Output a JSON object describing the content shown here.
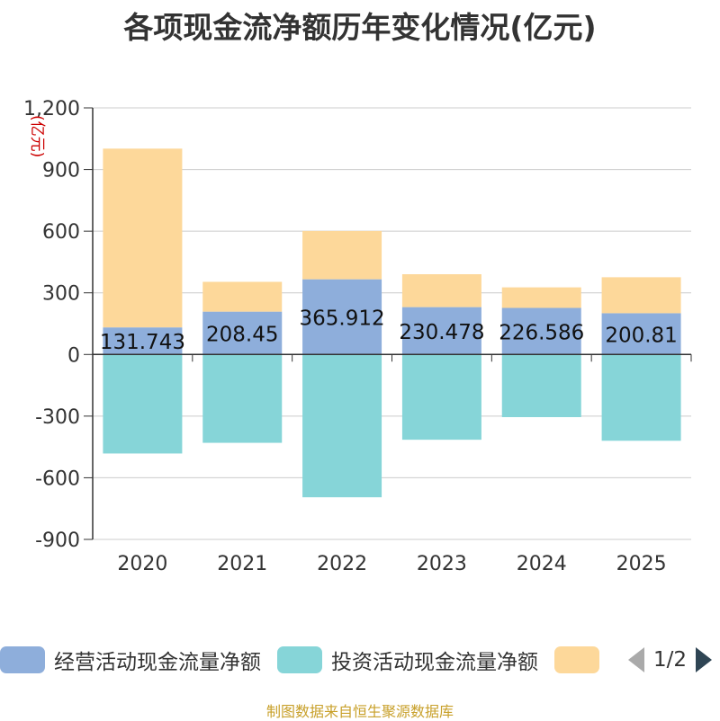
{
  "chart_data": {
    "type": "bar",
    "stacked": true,
    "title": "各项现金流净额历年变化情况(亿元)",
    "ylabel": "(亿元)",
    "xlabel": "",
    "categories": [
      "2020",
      "2021",
      "2022",
      "2023",
      "2024",
      "2025"
    ],
    "ylim": [
      -900,
      1200
    ],
    "yticks": [
      -900,
      -600,
      -300,
      0,
      300,
      600,
      900,
      1200
    ],
    "ytick_labels": [
      "-900",
      "-600",
      "-300",
      "0",
      "300",
      "600",
      "900",
      "1,200"
    ],
    "series": [
      {
        "name": "经营活动现金流量净额",
        "color": "#8eaedb",
        "values": [
          131.743,
          208.45,
          365.912,
          230.478,
          226.586,
          200.81
        ],
        "labels": [
          "131.743",
          "208.45",
          "365.912",
          "230.478",
          "226.586",
          "200.81"
        ]
      },
      {
        "name": "投资活动现金流量净额",
        "color": "#86d5d8",
        "values": [
          -482,
          -430,
          -695,
          -415,
          -305,
          -420
        ]
      },
      {
        "name": "",
        "color": "#fdd89a",
        "values": [
          870,
          145,
          235,
          160,
          100,
          175
        ]
      }
    ],
    "grid": true,
    "legend_position": "bottom"
  },
  "legend": {
    "items": [
      {
        "label": "经营活动现金流量净额",
        "color": "#8eaedb"
      },
      {
        "label": "投资活动现金流量净额",
        "color": "#86d5d8"
      },
      {
        "label": "",
        "color": "#fdd89a"
      }
    ],
    "page_indicator": "1/2"
  },
  "footer": "制图数据来自恒生聚源数据库"
}
